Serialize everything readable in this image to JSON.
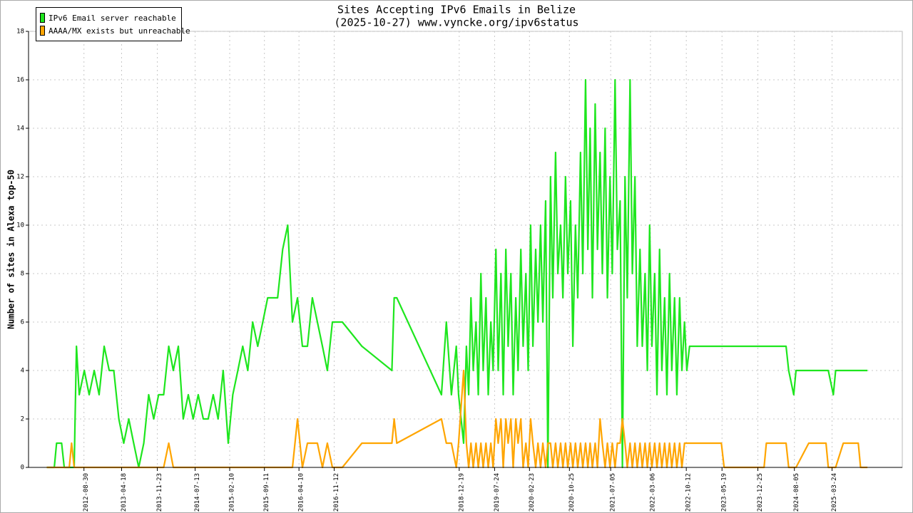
{
  "chart_data": {
    "type": "line",
    "title": "Sites Accepting IPv6 Emails in Belize",
    "subtitle": "(2025-10-27) www.vyncke.org/ipv6status",
    "y_label": "Number of sites in Alexa top-50",
    "x": [
      "2012-01-15",
      "2012-03-01",
      "2012-03-15",
      "2012-04-15",
      "2012-05-01",
      "2012-06-01",
      "2012-06-15",
      "2012-07-01",
      "2012-07-15",
      "2012-08-01",
      "2012-09-01",
      "2012-10-01",
      "2012-11-01",
      "2012-12-01",
      "2013-01-01",
      "2013-02-01",
      "2013-03-01",
      "2013-04-01",
      "2013-05-01",
      "2013-06-01",
      "2013-07-01",
      "2013-08-01",
      "2013-09-01",
      "2013-10-01",
      "2013-11-01",
      "2013-12-01",
      "2014-01-01",
      "2014-02-01",
      "2014-03-01",
      "2014-04-01",
      "2014-05-01",
      "2014-06-01",
      "2014-07-01",
      "2014-08-01",
      "2014-09-01",
      "2014-10-01",
      "2014-11-01",
      "2014-12-01",
      "2015-01-01",
      "2015-02-01",
      "2015-03-01",
      "2015-04-01",
      "2015-05-01",
      "2015-06-01",
      "2015-07-01",
      "2015-08-01",
      "2015-09-01",
      "2015-10-01",
      "2015-11-01",
      "2015-12-01",
      "2016-01-01",
      "2016-02-01",
      "2016-03-01",
      "2016-04-01",
      "2016-05-01",
      "2016-06-01",
      "2016-07-01",
      "2016-08-01",
      "2016-09-01",
      "2016-10-01",
      "2016-11-01",
      "2016-12-01",
      "2017-01-01",
      "2017-05-01",
      "2017-11-01",
      "2017-11-15",
      "2017-12-01",
      "2018-09-01",
      "2018-10-01",
      "2018-11-01",
      "2018-12-01",
      "2018-12-15",
      "2019-01-15",
      "2019-02-01",
      "2019-02-15",
      "2019-03-01",
      "2019-03-15",
      "2019-04-01",
      "2019-04-15",
      "2019-05-01",
      "2019-05-15",
      "2019-06-01",
      "2019-06-15",
      "2019-07-01",
      "2019-07-15",
      "2019-08-01",
      "2019-08-15",
      "2019-09-01",
      "2019-09-15",
      "2019-10-01",
      "2019-10-15",
      "2019-11-01",
      "2019-11-15",
      "2019-12-01",
      "2019-12-15",
      "2020-01-01",
      "2020-01-15",
      "2020-02-01",
      "2020-02-15",
      "2020-03-01",
      "2020-03-15",
      "2020-04-01",
      "2020-04-15",
      "2020-05-01",
      "2020-05-15",
      "2020-06-01",
      "2020-06-15",
      "2020-07-01",
      "2020-07-15",
      "2020-08-01",
      "2020-08-15",
      "2020-09-01",
      "2020-09-15",
      "2020-10-01",
      "2020-10-15",
      "2020-11-01",
      "2020-11-15",
      "2020-12-01",
      "2020-12-15",
      "2021-01-01",
      "2021-01-15",
      "2021-02-01",
      "2021-02-15",
      "2021-03-01",
      "2021-03-15",
      "2021-04-01",
      "2021-04-15",
      "2021-05-01",
      "2021-05-15",
      "2021-06-01",
      "2021-06-15",
      "2021-07-01",
      "2021-07-15",
      "2021-08-01",
      "2021-08-15",
      "2021-09-01",
      "2021-09-15",
      "2021-10-01",
      "2021-10-15",
      "2021-11-01",
      "2021-11-15",
      "2021-12-01",
      "2021-12-15",
      "2022-01-01",
      "2022-01-15",
      "2022-02-01",
      "2022-02-15",
      "2022-03-01",
      "2022-03-15",
      "2022-04-01",
      "2022-04-15",
      "2022-05-01",
      "2022-05-15",
      "2022-06-01",
      "2022-06-15",
      "2022-07-01",
      "2022-07-15",
      "2022-08-01",
      "2022-08-15",
      "2022-09-01",
      "2022-09-15",
      "2022-10-01",
      "2022-10-15",
      "2022-11-01",
      "2023-05-15",
      "2023-06-01",
      "2024-02-01",
      "2024-02-15",
      "2024-06-15",
      "2024-07-01",
      "2024-08-01",
      "2024-08-15",
      "2024-11-01",
      "2025-02-15",
      "2025-03-01",
      "2025-04-01",
      "2025-04-15",
      "2025-06-01",
      "2025-09-01",
      "2025-09-15",
      "2025-10-27"
    ],
    "series": [
      {
        "name": "IPv6 Email server reachable",
        "color": "#1ee61e",
        "values": [
          0,
          0,
          1,
          1,
          0,
          0,
          0,
          0,
          5,
          3,
          4,
          3,
          4,
          3,
          5,
          4,
          4,
          2,
          1,
          2,
          1,
          0,
          1,
          3,
          2,
          3,
          3,
          5,
          4,
          5,
          2,
          3,
          2,
          3,
          2,
          2,
          3,
          2,
          4,
          1,
          3,
          4,
          5,
          4,
          6,
          5,
          6,
          7,
          7,
          7,
          9,
          10,
          6,
          7,
          5,
          5,
          7,
          6,
          5,
          4,
          6,
          6,
          6,
          5,
          4,
          7,
          7,
          3,
          6,
          3,
          5,
          3,
          1,
          5,
          3,
          7,
          4,
          6,
          3,
          8,
          4,
          7,
          3,
          6,
          4,
          9,
          4,
          8,
          3,
          9,
          5,
          8,
          3,
          7,
          4,
          9,
          5,
          8,
          4,
          10,
          5,
          9,
          6,
          10,
          6,
          11,
          0,
          12,
          7,
          13,
          8,
          10,
          7,
          12,
          8,
          11,
          5,
          10,
          7,
          13,
          8,
          16,
          9,
          14,
          7,
          15,
          9,
          13,
          8,
          14,
          7,
          12,
          8,
          16,
          9,
          11,
          0,
          12,
          7,
          16,
          8,
          12,
          5,
          9,
          5,
          8,
          4,
          10,
          5,
          8,
          3,
          9,
          4,
          7,
          3,
          8,
          4,
          7,
          3,
          7,
          4,
          6,
          4,
          5,
          5,
          5,
          5,
          5,
          5,
          4,
          3,
          4,
          4,
          4,
          4,
          3,
          4,
          4,
          4,
          4,
          4
        ]
      },
      {
        "name": "AAAA/MX exists but unreachable",
        "color": "#ffa500",
        "values": [
          0,
          0,
          0,
          0,
          0,
          0,
          1,
          0,
          0,
          0,
          0,
          0,
          0,
          0,
          0,
          0,
          0,
          0,
          0,
          0,
          0,
          0,
          0,
          0,
          0,
          0,
          0,
          1,
          0,
          0,
          0,
          0,
          0,
          0,
          0,
          0,
          0,
          0,
          0,
          0,
          0,
          0,
          0,
          0,
          0,
          0,
          0,
          0,
          0,
          0,
          0,
          0,
          0,
          2,
          0,
          1,
          1,
          1,
          0,
          1,
          0,
          0,
          0,
          1,
          1,
          2,
          1,
          2,
          1,
          1,
          0,
          1,
          4,
          1,
          0,
          1,
          0,
          1,
          0,
          1,
          0,
          1,
          0,
          1,
          0,
          2,
          1,
          2,
          0,
          2,
          1,
          2,
          0,
          2,
          1,
          2,
          0,
          1,
          0,
          2,
          1,
          0,
          1,
          0,
          1,
          0,
          1,
          1,
          0,
          1,
          0,
          1,
          0,
          1,
          0,
          1,
          0,
          1,
          0,
          1,
          0,
          1,
          0,
          1,
          0,
          1,
          0,
          2,
          1,
          0,
          1,
          0,
          1,
          0,
          1,
          1,
          2,
          1,
          0,
          1,
          0,
          1,
          0,
          1,
          0,
          1,
          0,
          1,
          0,
          1,
          0,
          1,
          0,
          1,
          0,
          1,
          0,
          1,
          0,
          1,
          0,
          1,
          1,
          1,
          1,
          0,
          0,
          1,
          1,
          0,
          0,
          0,
          1,
          1,
          0,
          0,
          0,
          1,
          1,
          0,
          0
        ]
      }
    ],
    "xlim": [
      "2011-09-25",
      "2026-05-29"
    ],
    "xticks": [
      "2012-08-30",
      "2013-04-18",
      "2013-11-23",
      "2014-07-13",
      "2015-02-10",
      "2015-09-11",
      "2016-04-10",
      "2016-11-12",
      "2018-12-19",
      "2019-07-24",
      "2020-02-23",
      "2020-10-25",
      "2021-07-05",
      "2022-03-06",
      "2022-10-12",
      "2023-05-19",
      "2023-12-25",
      "2024-08-05",
      "2025-03-24"
    ],
    "ylim": [
      0,
      18
    ],
    "yticks": [
      0,
      2,
      4,
      6,
      8,
      10,
      12,
      14,
      16,
      18
    ],
    "grid": true,
    "legend": "upper left"
  }
}
